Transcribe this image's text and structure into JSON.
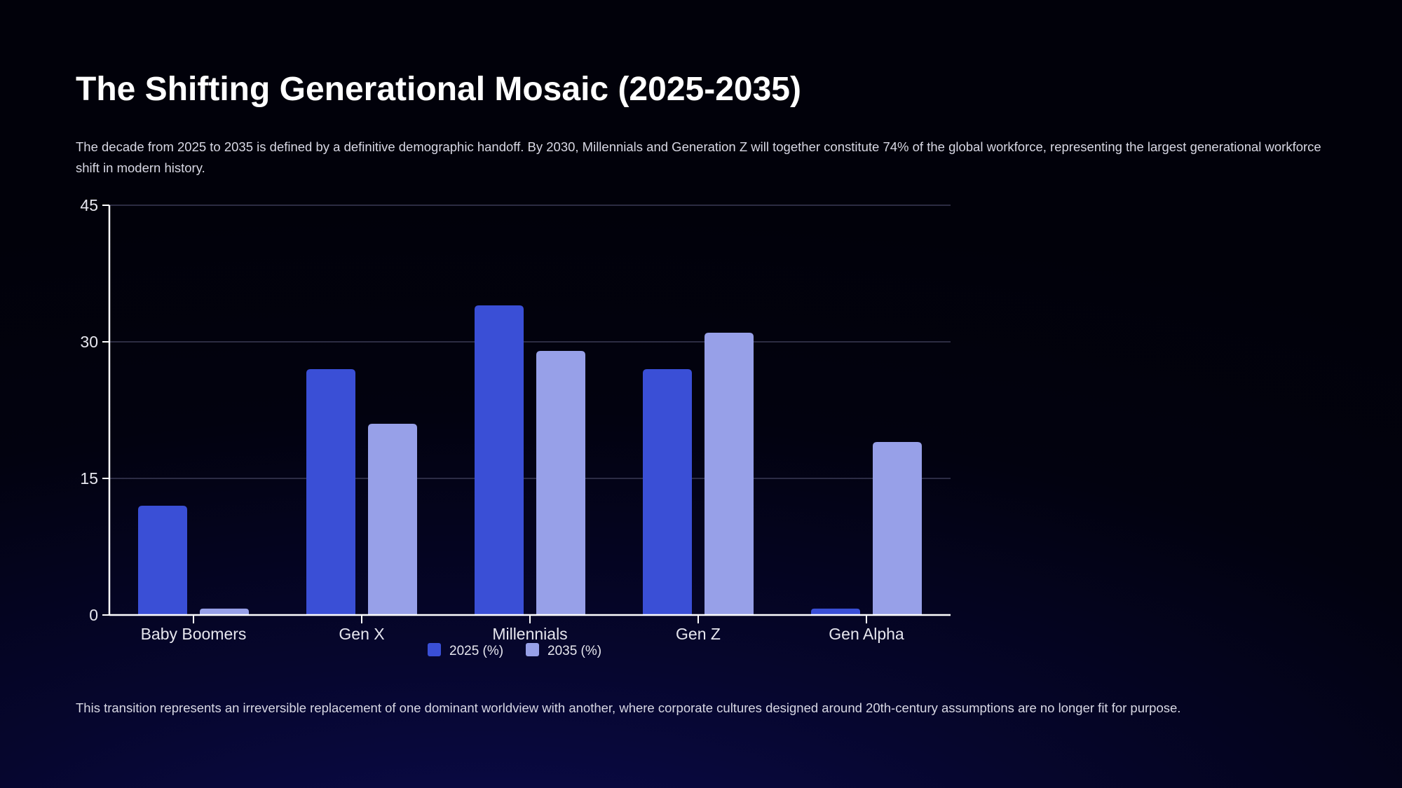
{
  "slide": {
    "title": "The Shifting Generational Mosaic (2025-2035)",
    "intro": "The decade from 2025 to 2035 is defined by a definitive demographic handoff. By 2030, Millennials and Generation Z will together constitute 74% of the global workforce, representing the largest generational workforce shift in modern history.",
    "footer": "This transition represents an irreversible replacement of one dominant worldview with another, where corporate cultures designed around 20th-century assumptions are no longer fit for purpose."
  },
  "chart_data": {
    "type": "bar",
    "title": "",
    "xlabel": "",
    "ylabel": "",
    "categories": [
      "Baby Boomers",
      "Gen X",
      "Millennials",
      "Gen Z",
      "Gen Alpha"
    ],
    "series": [
      {
        "name": "2025 (%)",
        "values": [
          12,
          27,
          34,
          27,
          0.7
        ],
        "color": "#3a4fd6"
      },
      {
        "name": "2035 (%)",
        "values": [
          0.7,
          21,
          29,
          31,
          19
        ],
        "color": "#97a0e8"
      }
    ],
    "ylim": [
      0,
      45
    ],
    "yticks": [
      0,
      15,
      30,
      45
    ],
    "grid": true,
    "legend": "bottom-center",
    "colors": {
      "axis": "#ffffff",
      "grid": "#3a3a55",
      "tick_text": "#e6e6ee"
    }
  }
}
